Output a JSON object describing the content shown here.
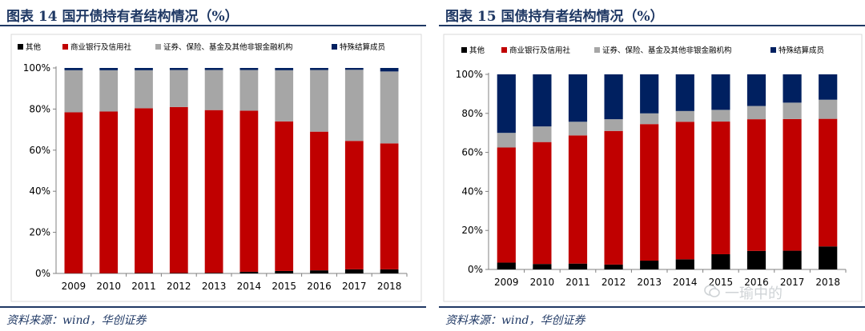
{
  "colors": {
    "other": "#000000",
    "bank": "#c00000",
    "securities": "#a6a6a6",
    "special": "#002060",
    "heading": "#1f3864"
  },
  "left": {
    "title": "图表 14 国开债持有者结构情况（%）",
    "source": "资料来源：wind，华创证券",
    "chart_data": {
      "type": "bar",
      "stacked": true,
      "title": "国开债持有者结构情况（%）",
      "categories": [
        "2009",
        "2010",
        "2011",
        "2012",
        "2013",
        "2014",
        "2015",
        "2016",
        "2017",
        "2018"
      ],
      "yticks": [
        "0%",
        "20%",
        "40%",
        "60%",
        "80%",
        "100%"
      ],
      "ylim": [
        0,
        100
      ],
      "series": [
        {
          "name": "其他",
          "color_key": "other",
          "values": [
            0.1,
            0.1,
            0.2,
            0.2,
            0.3,
            0.8,
            1.2,
            1.5,
            2.0,
            2.0
          ]
        },
        {
          "name": "商业银行及信用社",
          "color_key": "bank",
          "values": [
            78.3,
            78.7,
            80.2,
            80.8,
            79.2,
            78.4,
            72.8,
            67.5,
            62.5,
            61.3
          ]
        },
        {
          "name": "证券、保险、基金及其他非银金融机构",
          "color_key": "securities",
          "values": [
            20.5,
            20.1,
            18.5,
            18.0,
            19.5,
            19.8,
            24.9,
            30.0,
            34.6,
            35.0
          ]
        },
        {
          "name": "特殊结算成员",
          "color_key": "special",
          "values": [
            1.1,
            1.1,
            1.1,
            1.0,
            1.0,
            1.0,
            1.1,
            1.0,
            0.9,
            1.7
          ]
        }
      ]
    }
  },
  "right": {
    "title": "图表 15 国债持有者结构情况（%）",
    "source": "资料来源：wind，华创证券",
    "chart_data": {
      "type": "bar",
      "stacked": true,
      "title": "国债持有者结构情况（%）",
      "categories": [
        "2009",
        "2010",
        "2011",
        "2012",
        "2013",
        "2014",
        "2015",
        "2016",
        "2017",
        "2018"
      ],
      "yticks": [
        "0%",
        "20%",
        "40%",
        "60%",
        "80%",
        "100%"
      ],
      "ylim": [
        0,
        100
      ],
      "series": [
        {
          "name": "其他",
          "color_key": "other",
          "values": [
            3.5,
            2.8,
            3.0,
            2.5,
            4.5,
            5.2,
            7.8,
            9.5,
            9.6,
            11.8
          ]
        },
        {
          "name": "商业银行及信用社",
          "color_key": "bank",
          "values": [
            59.0,
            62.5,
            65.7,
            68.5,
            70.0,
            70.5,
            68.0,
            67.5,
            67.5,
            65.4
          ]
        },
        {
          "name": "证券、保险、基金及其他非银金融机构",
          "color_key": "securities",
          "values": [
            7.5,
            8.0,
            7.0,
            6.0,
            5.5,
            5.5,
            6.0,
            6.8,
            8.4,
            9.8
          ]
        },
        {
          "name": "特殊结算成员",
          "color_key": "special",
          "values": [
            30.0,
            26.7,
            24.3,
            23.0,
            20.0,
            18.8,
            18.2,
            16.2,
            14.5,
            13.0
          ]
        }
      ]
    }
  },
  "watermark": {
    "text": "一瑜中的"
  }
}
